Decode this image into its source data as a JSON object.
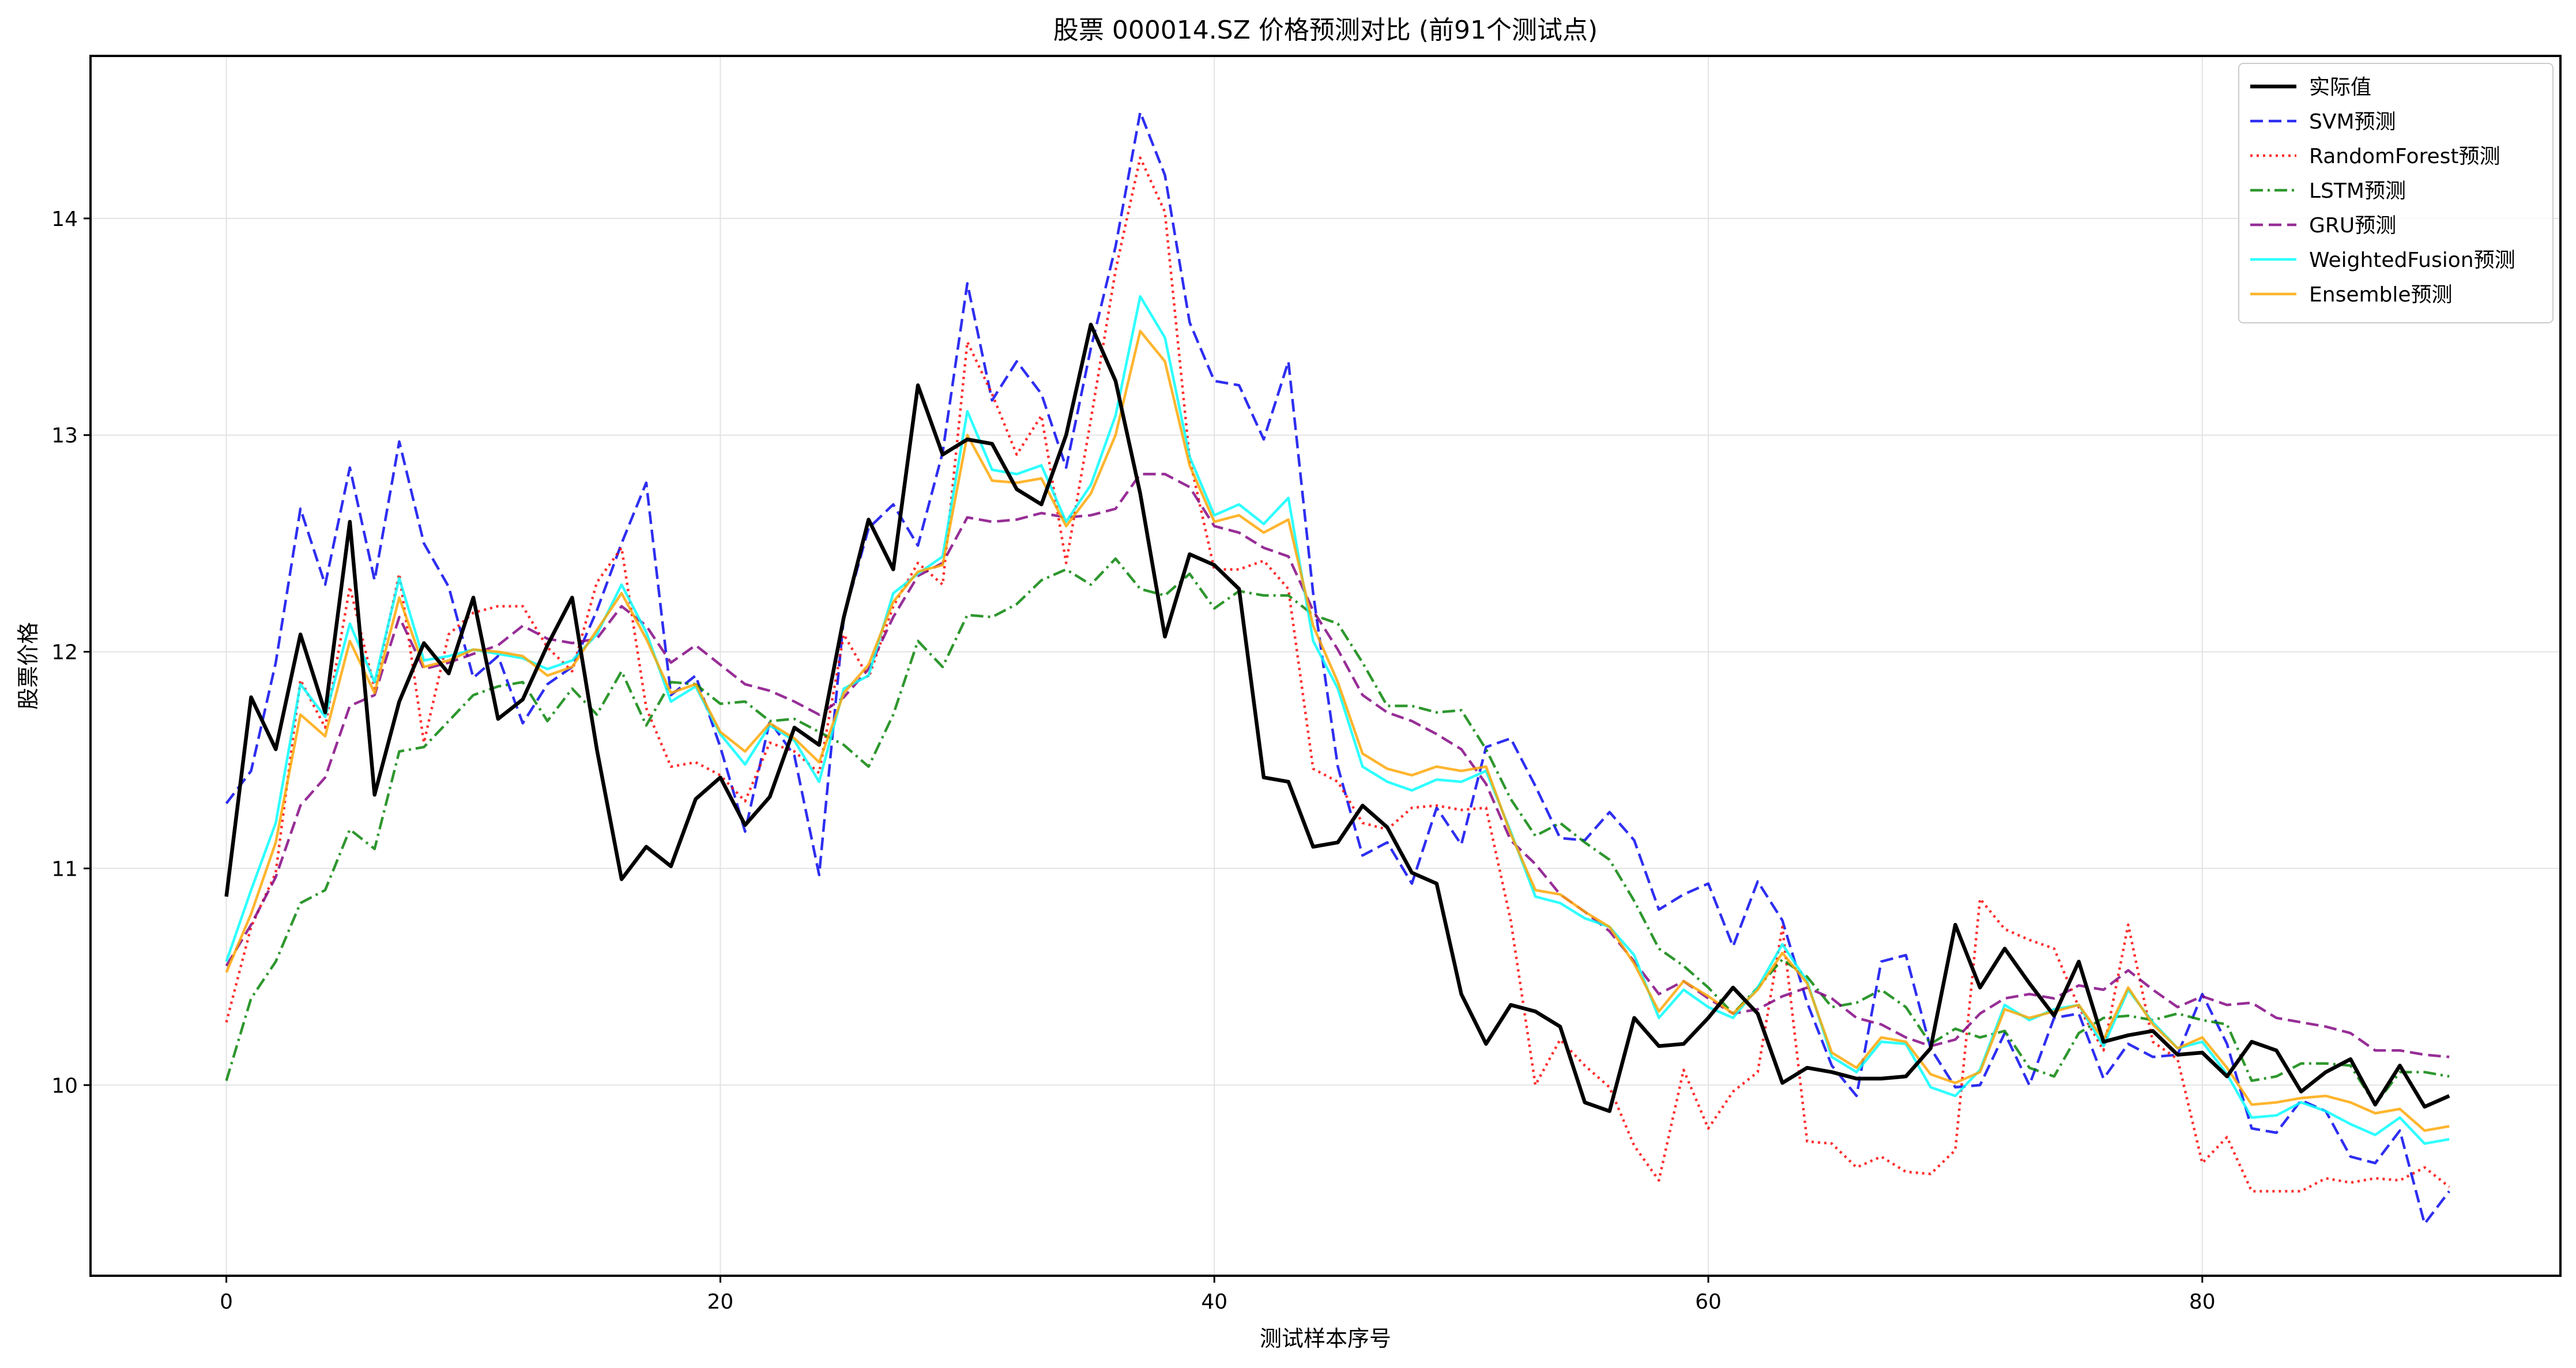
{
  "chart_data": {
    "type": "line",
    "title": "股票 000014.SZ 价格预测对比 (前91个测试点)",
    "xlabel": "测试样本序号",
    "ylabel": "股票价格",
    "xlim": [
      -5.5,
      94.5
    ],
    "ylim": [
      9.12,
      14.75
    ],
    "xticks": [
      0,
      20,
      40,
      60,
      80
    ],
    "yticks": [
      10,
      11,
      12,
      13,
      14
    ],
    "grid": true,
    "legend_position": "top-right",
    "series": [
      {
        "name": "实际值",
        "color": "#000000",
        "dash": "",
        "width": 6.5,
        "values": [
          10.87,
          11.79,
          11.55,
          12.08,
          11.72,
          12.6,
          11.34,
          11.77,
          12.04,
          11.9,
          12.25,
          11.69,
          11.78,
          12.03,
          12.25,
          11.55,
          10.95,
          11.1,
          11.01,
          11.32,
          11.42,
          11.2,
          11.33,
          11.65,
          11.57,
          12.16,
          12.61,
          12.38,
          13.23,
          12.91,
          12.98,
          12.96,
          12.75,
          12.68,
          13.0,
          13.51,
          13.25,
          12.73,
          12.07,
          12.45,
          12.4,
          12.29,
          11.42,
          11.4,
          11.1,
          11.12,
          11.29,
          11.19,
          10.98,
          10.93,
          10.42,
          10.19,
          10.37,
          10.34,
          10.27,
          9.92,
          9.88,
          10.31,
          10.18,
          10.19,
          10.31,
          10.45,
          10.33,
          10.01,
          10.08,
          10.06,
          10.03,
          10.03,
          10.04,
          10.17,
          10.74,
          10.45,
          10.63,
          10.47,
          10.32,
          10.57,
          10.2,
          10.23,
          10.25,
          10.14,
          10.15,
          10.04,
          10.2,
          10.16,
          9.97,
          10.06,
          10.12,
          9.91,
          10.09,
          9.9,
          9.95
        ]
      },
      {
        "name": "SVM预测",
        "color": "#0000ee",
        "dash": "22,10",
        "width": 4.5,
        "values": [
          11.3,
          11.45,
          11.95,
          12.66,
          12.31,
          12.85,
          12.33,
          12.97,
          12.5,
          12.3,
          11.88,
          11.98,
          11.67,
          11.85,
          11.93,
          12.19,
          12.5,
          12.78,
          11.8,
          11.89,
          11.56,
          11.17,
          11.68,
          11.52,
          10.97,
          12.16,
          12.57,
          12.68,
          12.49,
          12.92,
          13.7,
          13.16,
          13.34,
          13.19,
          12.85,
          13.4,
          13.87,
          14.49,
          14.2,
          13.52,
          13.25,
          13.23,
          12.98,
          13.34,
          12.27,
          11.47,
          11.06,
          11.12,
          10.93,
          11.28,
          11.11,
          11.56,
          11.6,
          11.38,
          11.14,
          11.13,
          11.26,
          11.13,
          10.81,
          10.88,
          10.93,
          10.64,
          10.94,
          10.76,
          10.38,
          10.09,
          9.95,
          10.57,
          10.6,
          10.17,
          9.99,
          10.0,
          10.24,
          10.0,
          10.31,
          10.33,
          10.03,
          10.19,
          10.13,
          10.14,
          10.42,
          10.19,
          9.8,
          9.78,
          9.93,
          9.88,
          9.67,
          9.64,
          9.79,
          9.36,
          9.51
        ]
      },
      {
        "name": "RandomForest预测",
        "color": "#ff0000",
        "dash": "4,7",
        "width": 4.5,
        "values": [
          10.29,
          10.73,
          10.98,
          11.87,
          11.65,
          12.3,
          11.83,
          12.36,
          11.58,
          12.08,
          12.18,
          12.21,
          12.21,
          12.02,
          11.91,
          12.32,
          12.48,
          11.74,
          11.47,
          11.49,
          11.43,
          11.31,
          11.58,
          11.54,
          11.44,
          12.08,
          11.88,
          12.21,
          12.41,
          12.31,
          13.43,
          13.19,
          12.91,
          13.09,
          12.41,
          13.07,
          13.76,
          14.28,
          14.03,
          12.89,
          12.38,
          12.38,
          12.42,
          12.29,
          11.46,
          11.4,
          11.21,
          11.18,
          11.28,
          11.29,
          11.27,
          11.28,
          10.76,
          10.0,
          10.21,
          10.09,
          9.99,
          9.72,
          9.56,
          10.07,
          9.8,
          9.97,
          10.06,
          10.73,
          9.74,
          9.73,
          9.62,
          9.67,
          9.6,
          9.59,
          9.7,
          10.86,
          10.72,
          10.67,
          10.63,
          10.36,
          10.16,
          10.74,
          10.2,
          10.12,
          9.64,
          9.76,
          9.51,
          9.51,
          9.51,
          9.57,
          9.55,
          9.57,
          9.56,
          9.62,
          9.53
        ]
      },
      {
        "name": "LSTM预测",
        "color": "#008000",
        "dash": "22,8,4,8",
        "width": 4.5,
        "values": [
          10.02,
          10.4,
          10.57,
          10.84,
          10.9,
          11.18,
          11.09,
          11.54,
          11.56,
          11.68,
          11.8,
          11.84,
          11.86,
          11.68,
          11.83,
          11.71,
          11.91,
          11.66,
          11.86,
          11.85,
          11.76,
          11.77,
          11.68,
          11.69,
          11.63,
          11.57,
          11.47,
          11.71,
          12.05,
          11.93,
          12.17,
          12.16,
          12.22,
          12.33,
          12.38,
          12.31,
          12.43,
          12.29,
          12.26,
          12.36,
          12.2,
          12.28,
          12.26,
          12.26,
          12.17,
          12.13,
          11.95,
          11.75,
          11.75,
          11.72,
          11.73,
          11.55,
          11.32,
          11.15,
          11.21,
          11.12,
          11.04,
          10.85,
          10.63,
          10.55,
          10.45,
          10.33,
          10.45,
          10.58,
          10.5,
          10.36,
          10.38,
          10.44,
          10.36,
          10.19,
          10.26,
          10.22,
          10.25,
          10.08,
          10.04,
          10.24,
          10.31,
          10.32,
          10.3,
          10.33,
          10.3,
          10.28,
          10.02,
          10.04,
          10.1,
          10.1,
          10.09,
          9.91,
          10.06,
          10.06,
          10.04
        ]
      },
      {
        "name": "GRU预测",
        "color": "#800080",
        "dash": "22,10",
        "width": 4.5,
        "values": [
          10.55,
          10.74,
          10.96,
          11.29,
          11.42,
          11.75,
          11.8,
          12.16,
          11.92,
          11.95,
          11.99,
          12.03,
          12.12,
          12.06,
          12.04,
          12.06,
          12.21,
          12.12,
          11.95,
          12.03,
          11.94,
          11.85,
          11.82,
          11.77,
          11.71,
          11.79,
          11.92,
          12.16,
          12.35,
          12.41,
          12.62,
          12.6,
          12.61,
          12.64,
          12.62,
          12.63,
          12.66,
          12.82,
          12.82,
          12.76,
          12.58,
          12.55,
          12.48,
          12.44,
          12.19,
          12.01,
          11.8,
          11.72,
          11.68,
          11.62,
          11.55,
          11.39,
          11.13,
          11.02,
          10.88,
          10.8,
          10.71,
          10.57,
          10.42,
          10.48,
          10.4,
          10.33,
          10.35,
          10.41,
          10.45,
          10.4,
          10.31,
          10.28,
          10.22,
          10.18,
          10.21,
          10.33,
          10.4,
          10.42,
          10.4,
          10.46,
          10.44,
          10.53,
          10.44,
          10.36,
          10.41,
          10.37,
          10.38,
          10.31,
          10.29,
          10.27,
          10.24,
          10.16,
          10.16,
          10.14,
          10.13
        ]
      },
      {
        "name": "WeightedFusion预测",
        "color": "#00ffff",
        "dash": "",
        "width": 4.5,
        "values": [
          10.57,
          10.9,
          11.21,
          11.85,
          11.7,
          12.13,
          11.86,
          12.34,
          11.96,
          11.98,
          12.01,
          11.99,
          11.97,
          11.92,
          11.96,
          12.08,
          12.31,
          12.09,
          11.77,
          11.84,
          11.62,
          11.48,
          11.66,
          11.59,
          11.4,
          11.83,
          11.89,
          12.27,
          12.36,
          12.44,
          13.11,
          12.84,
          12.82,
          12.86,
          12.6,
          12.77,
          13.09,
          13.64,
          13.45,
          12.9,
          12.63,
          12.68,
          12.59,
          12.71,
          12.05,
          11.83,
          11.47,
          11.4,
          11.36,
          11.41,
          11.4,
          11.45,
          11.17,
          10.87,
          10.84,
          10.77,
          10.73,
          10.6,
          10.31,
          10.44,
          10.36,
          10.31,
          10.45,
          10.65,
          10.48,
          10.13,
          10.06,
          10.2,
          10.19,
          9.99,
          9.95,
          10.07,
          10.37,
          10.3,
          10.35,
          10.37,
          10.18,
          10.44,
          10.29,
          10.17,
          10.2,
          10.05,
          9.85,
          9.86,
          9.92,
          9.88,
          9.82,
          9.77,
          9.85,
          9.73,
          9.75
        ]
      },
      {
        "name": "Ensemble预测",
        "color": "#ffa500",
        "dash": "",
        "width": 4.5,
        "values": [
          10.52,
          10.79,
          11.12,
          11.71,
          11.61,
          12.05,
          11.81,
          12.25,
          11.93,
          11.96,
          12.01,
          12.0,
          11.98,
          11.89,
          11.93,
          12.1,
          12.27,
          12.06,
          11.81,
          11.85,
          11.63,
          11.54,
          11.67,
          11.6,
          11.49,
          11.81,
          11.94,
          12.23,
          12.37,
          12.4,
          13.0,
          12.79,
          12.78,
          12.8,
          12.58,
          12.73,
          13.0,
          13.48,
          13.34,
          12.86,
          12.6,
          12.63,
          12.55,
          12.61,
          12.12,
          11.86,
          11.53,
          11.46,
          11.43,
          11.47,
          11.45,
          11.47,
          11.16,
          10.9,
          10.88,
          10.8,
          10.73,
          10.56,
          10.34,
          10.48,
          10.41,
          10.33,
          10.44,
          10.61,
          10.47,
          10.15,
          10.08,
          10.22,
          10.2,
          10.05,
          10.01,
          10.06,
          10.35,
          10.31,
          10.34,
          10.37,
          10.21,
          10.45,
          10.28,
          10.17,
          10.22,
          10.08,
          9.91,
          9.92,
          9.94,
          9.95,
          9.92,
          9.87,
          9.89,
          9.79,
          9.81
        ]
      }
    ]
  }
}
